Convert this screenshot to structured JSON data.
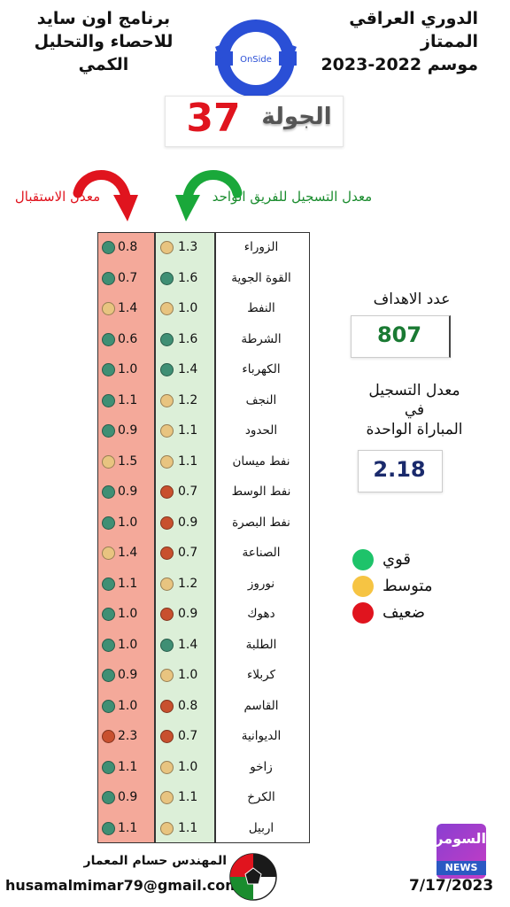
{
  "header": {
    "league_title": "الدوري العراقي الممتاز",
    "season": "موسم 2022-2023",
    "program_title": "برنامج اون سايد",
    "program_subtitle": "للاحصاء والتحليل الكمي",
    "logo_text": "OnSide"
  },
  "round": {
    "label": "الجولة",
    "number": "37"
  },
  "labels": {
    "conceded_avg": "معدل الاستقبال",
    "scored_avg": "معدل التسجيل للفريق الواحد"
  },
  "colors": {
    "strong": "#1ec36a",
    "medium": "#f6c443",
    "weak": "#e0141e",
    "dot_green": "#3f8f74",
    "dot_yellow": "#e8c480",
    "dot_red": "#c8502e"
  },
  "teams": [
    {
      "name": "الزوراء",
      "scored": "1.3",
      "scored_level": "medium",
      "conceded": "0.8",
      "conceded_level": "strong"
    },
    {
      "name": "القوة الجوية",
      "scored": "1.6",
      "scored_level": "strong",
      "conceded": "0.7",
      "conceded_level": "strong"
    },
    {
      "name": "النفط",
      "scored": "1.0",
      "scored_level": "medium",
      "conceded": "1.4",
      "conceded_level": "medium"
    },
    {
      "name": "الشرطة",
      "scored": "1.6",
      "scored_level": "strong",
      "conceded": "0.6",
      "conceded_level": "strong"
    },
    {
      "name": "الكهرباء",
      "scored": "1.4",
      "scored_level": "strong",
      "conceded": "1.0",
      "conceded_level": "strong"
    },
    {
      "name": "النجف",
      "scored": "1.2",
      "scored_level": "medium",
      "conceded": "1.1",
      "conceded_level": "strong"
    },
    {
      "name": "الحدود",
      "scored": "1.1",
      "scored_level": "medium",
      "conceded": "0.9",
      "conceded_level": "strong"
    },
    {
      "name": "نفط ميسان",
      "scored": "1.1",
      "scored_level": "medium",
      "conceded": "1.5",
      "conceded_level": "medium"
    },
    {
      "name": "نفط الوسط",
      "scored": "0.7",
      "scored_level": "weak",
      "conceded": "0.9",
      "conceded_level": "strong"
    },
    {
      "name": "نفط البصرة",
      "scored": "0.9",
      "scored_level": "weak",
      "conceded": "1.0",
      "conceded_level": "strong"
    },
    {
      "name": "الصناعة",
      "scored": "0.7",
      "scored_level": "weak",
      "conceded": "1.4",
      "conceded_level": "medium"
    },
    {
      "name": "نوروز",
      "scored": "1.2",
      "scored_level": "medium",
      "conceded": "1.1",
      "conceded_level": "strong"
    },
    {
      "name": "دهوك",
      "scored": "0.9",
      "scored_level": "weak",
      "conceded": "1.0",
      "conceded_level": "strong"
    },
    {
      "name": "الطلبة",
      "scored": "1.4",
      "scored_level": "strong",
      "conceded": "1.0",
      "conceded_level": "strong"
    },
    {
      "name": "كربلاء",
      "scored": "1.0",
      "scored_level": "medium",
      "conceded": "0.9",
      "conceded_level": "strong"
    },
    {
      "name": "القاسم",
      "scored": "0.8",
      "scored_level": "weak",
      "conceded": "1.0",
      "conceded_level": "strong"
    },
    {
      "name": "الديوانية",
      "scored": "0.7",
      "scored_level": "weak",
      "conceded": "2.3",
      "conceded_level": "weak"
    },
    {
      "name": "زاخو",
      "scored": "1.0",
      "scored_level": "medium",
      "conceded": "1.1",
      "conceded_level": "strong"
    },
    {
      "name": "الكرخ",
      "scored": "1.1",
      "scored_level": "medium",
      "conceded": "0.9",
      "conceded_level": "strong"
    },
    {
      "name": "اربيل",
      "scored": "1.1",
      "scored_level": "medium",
      "conceded": "1.1",
      "conceded_level": "strong"
    }
  ],
  "stats": {
    "goals_label": "عدد الاهداف",
    "goals_value": "807",
    "avg_label_1": "معدل التسجيل",
    "avg_label_2": "في",
    "avg_label_3": "المباراة الواحدة",
    "avg_value": "2.18"
  },
  "legend": [
    {
      "label": "قوي",
      "level": "strong"
    },
    {
      "label": "متوسط",
      "level": "medium"
    },
    {
      "label": "ضعيف",
      "level": "weak"
    }
  ],
  "footer": {
    "engineer": "المهندس حسام المعمار",
    "email": "husamalmimar79@gmail.com",
    "date": "7/17/2023",
    "news_logo_top": "السومرية",
    "news_logo_bottom": "NEWS"
  }
}
